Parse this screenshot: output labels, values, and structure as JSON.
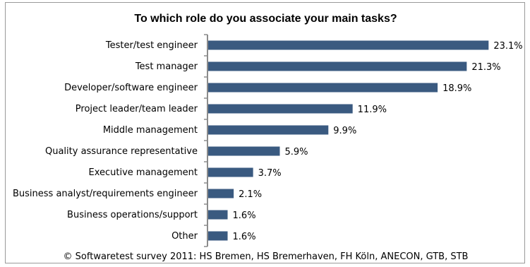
{
  "chart_data": {
    "type": "bar",
    "orientation": "horizontal",
    "title": "To which role do you associate your main tasks?",
    "categories": [
      "Tester/test engineer",
      "Test manager",
      "Developer/software engineer",
      "Project leader/team leader",
      "Middle management",
      "Quality assurance representative",
      "Executive management",
      "Business analyst/requirements engineer",
      "Business operations/support",
      "Other"
    ],
    "values": [
      23.1,
      21.3,
      18.9,
      11.9,
      9.9,
      5.9,
      3.7,
      2.1,
      1.6,
      1.6
    ],
    "value_labels": [
      "23.1%",
      "21.3%",
      "18.9%",
      "11.9%",
      "9.9%",
      "5.9%",
      "3.7%",
      "2.1%",
      "1.6%",
      "1.6%"
    ],
    "xlim": [
      0,
      25
    ],
    "grid": false,
    "legend": "none",
    "bar_color": "#3a5a80"
  },
  "footer": "© Softwaretest survey 2011: HS Bremen, HS Bremerhaven, FH Köln, ANECON, GTB, STB"
}
